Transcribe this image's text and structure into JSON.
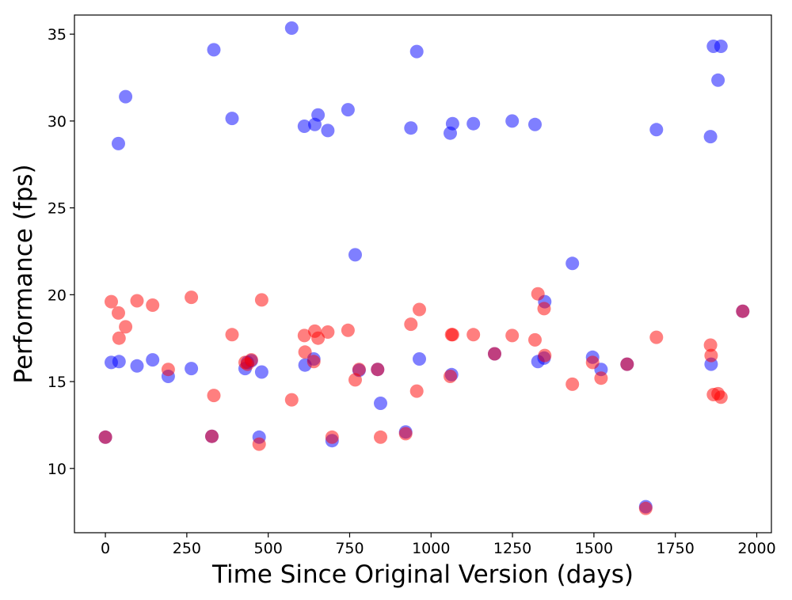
{
  "chart_data": {
    "type": "scatter",
    "xlabel": "Time Since Original Version (days)",
    "ylabel": "Performance (fps)",
    "xlim": [
      -95,
      2045
    ],
    "ylim": [
      6.3,
      36.1
    ],
    "xticks": [
      0,
      250,
      500,
      750,
      1000,
      1250,
      1500,
      1750,
      2000
    ],
    "yticks": [
      10,
      15,
      20,
      25,
      30,
      35
    ],
    "grid": false,
    "legend": "none",
    "marker_opacity": 0.5,
    "series": [
      {
        "color": "#0000ff",
        "x": [
          0,
          18,
          42,
          40,
          62,
          97,
          145,
          193,
          264,
          327,
          333,
          389,
          429,
          436,
          448,
          472,
          480,
          572,
          611,
          613,
          640,
          643,
          653,
          683,
          696,
          745,
          767,
          779,
          836,
          845,
          922,
          938,
          956,
          964,
          1059,
          1063,
          1066,
          1130,
          1195,
          1249,
          1319,
          1328,
          1347,
          1349,
          1434,
          1496,
          1522,
          1602,
          1659,
          1692,
          1858,
          1860,
          1867,
          1881,
          1890,
          1957
        ],
        "y": [
          11.8,
          16.1,
          16.15,
          28.7,
          31.4,
          15.9,
          16.25,
          15.3,
          15.75,
          11.85,
          34.1,
          30.15,
          15.75,
          16.1,
          16.2,
          11.8,
          15.55,
          35.35,
          29.7,
          15.95,
          16.3,
          29.8,
          30.35,
          29.45,
          11.6,
          30.65,
          22.3,
          15.65,
          15.7,
          13.75,
          12.1,
          29.6,
          34.0,
          16.3,
          29.3,
          15.4,
          29.85,
          29.85,
          16.6,
          30.0,
          29.8,
          16.15,
          16.35,
          19.6,
          21.8,
          16.4,
          15.7,
          16.0,
          7.8,
          29.5,
          29.1,
          16.0,
          34.3,
          32.35,
          34.3,
          19.05
        ]
      },
      {
        "color": "#ff0000",
        "x": [
          0,
          18,
          42,
          40,
          62,
          97,
          145,
          193,
          264,
          327,
          333,
          389,
          429,
          436,
          448,
          472,
          480,
          572,
          611,
          613,
          640,
          643,
          653,
          683,
          696,
          745,
          767,
          779,
          836,
          845,
          922,
          938,
          956,
          964,
          1059,
          1063,
          1066,
          1130,
          1195,
          1249,
          1319,
          1328,
          1347,
          1349,
          1434,
          1496,
          1522,
          1602,
          1659,
          1692,
          1858,
          1860,
          1867,
          1881,
          1890,
          1957
        ],
        "y": [
          11.8,
          19.6,
          17.5,
          18.95,
          18.15,
          19.65,
          19.4,
          15.7,
          19.85,
          11.85,
          14.2,
          17.7,
          16.1,
          16.0,
          16.25,
          11.4,
          19.7,
          13.95,
          17.65,
          16.7,
          16.15,
          17.9,
          17.5,
          17.85,
          11.8,
          17.95,
          15.1,
          15.7,
          15.7,
          11.8,
          12.0,
          18.3,
          14.45,
          19.15,
          15.3,
          17.7,
          17.7,
          17.7,
          16.6,
          17.65,
          17.4,
          20.05,
          19.2,
          16.5,
          14.85,
          16.1,
          15.2,
          16.0,
          7.7,
          17.55,
          17.1,
          16.5,
          14.25,
          14.3,
          14.1,
          19.05
        ]
      }
    ]
  }
}
